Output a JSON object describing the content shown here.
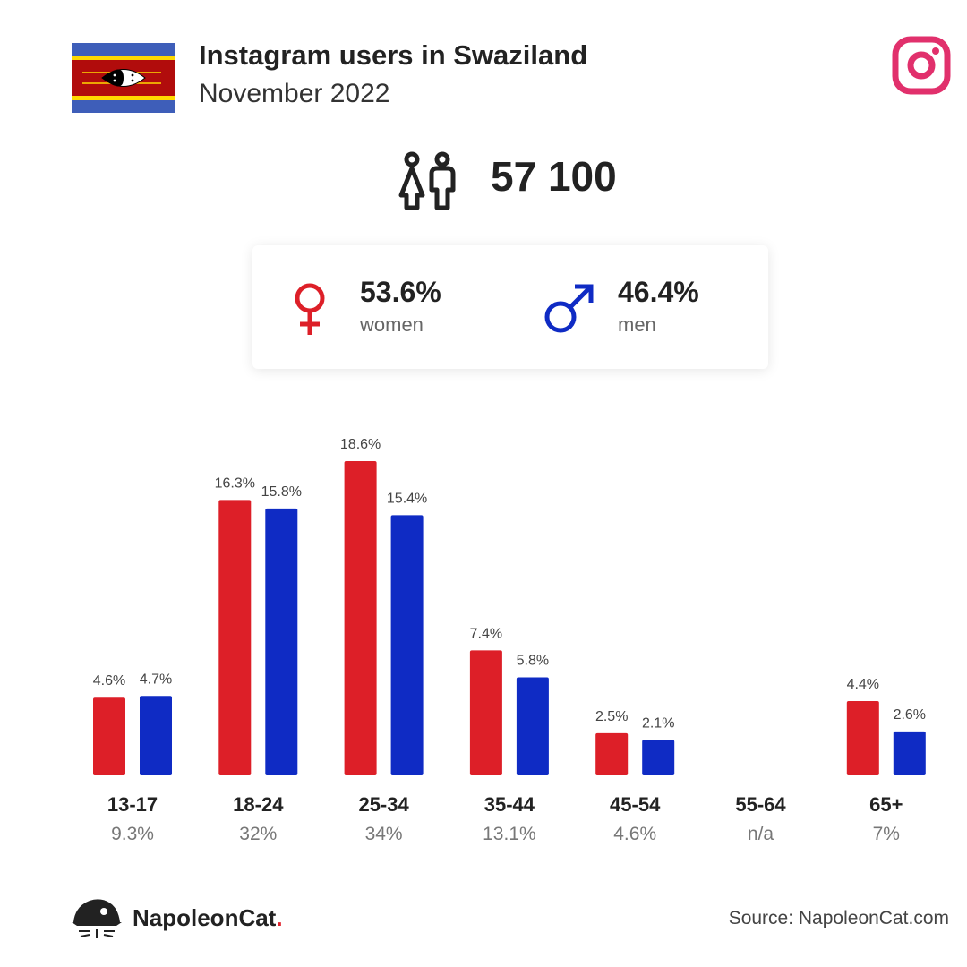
{
  "header": {
    "title": "Instagram users in Swaziland",
    "subtitle": "November 2022"
  },
  "icons": {
    "flag": "eswatini-flag-icon",
    "platform": "instagram-icon",
    "users": "people-icon",
    "women": "female-symbol-icon",
    "men": "male-symbol-icon",
    "brand": "napoleoncat-logo-icon"
  },
  "colors": {
    "women": "#dd1f28",
    "men": "#0f2bc4",
    "instagram": "#e1306c"
  },
  "total": {
    "value": "57 100"
  },
  "gender": {
    "women": {
      "pct": "53.6%",
      "label": "women"
    },
    "men": {
      "pct": "46.4%",
      "label": "men"
    }
  },
  "chart_data": {
    "type": "bar",
    "categories": [
      "13-17",
      "18-24",
      "25-34",
      "35-44",
      "45-54",
      "55-64",
      "65+"
    ],
    "category_totals": [
      "9.3%",
      "32%",
      "34%",
      "13.1%",
      "4.6%",
      "n/a",
      "7%"
    ],
    "series": [
      {
        "values": [
          4.6,
          16.3,
          18.6,
          7.4,
          2.5,
          null,
          4.4
        ],
        "labels": [
          "4.6%",
          "16.3%",
          "18.6%",
          "7.4%",
          "2.5%",
          "",
          "4.4%"
        ]
      },
      {
        "values": [
          4.7,
          15.8,
          15.4,
          5.8,
          2.1,
          null,
          2.6
        ],
        "labels": [
          "4.7%",
          "15.8%",
          "15.4%",
          "5.8%",
          "2.1%",
          "",
          "2.6%"
        ]
      }
    ],
    "ylim": [
      0,
      18.6
    ],
    "grid": false
  },
  "footer": {
    "brand_name": "NapoleonCat",
    "brand_dot": ".",
    "source": "Source: NapoleonCat.com"
  }
}
